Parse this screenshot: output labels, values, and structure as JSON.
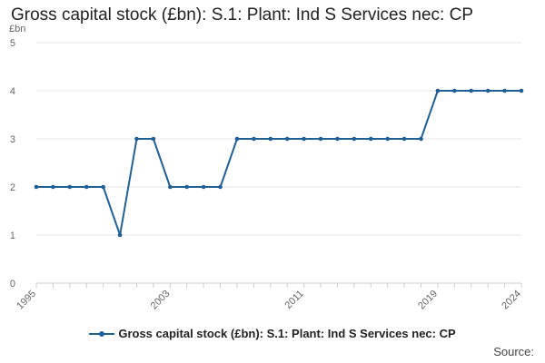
{
  "title": "Gross capital stock (£bn): S.1: Plant: Ind S Services nec: CP",
  "source_label": "Source:",
  "colors": {
    "series": "#206095",
    "grid": "#e6e6e6",
    "axis": "#cccccc",
    "text": "#666666"
  },
  "chart_data": {
    "type": "line",
    "title": "Gross capital stock (£bn): S.1: Plant: Ind S Services nec: CP",
    "ylabel": "£bn",
    "xlabel": "",
    "ylim": [
      0,
      5
    ],
    "yticks": [
      0,
      1,
      2,
      3,
      4,
      5
    ],
    "xlim": [
      1995,
      2024
    ],
    "xtick_labels": [
      "1995",
      "2003",
      "2011",
      "2019",
      "2024"
    ],
    "grid": true,
    "legend": "bottom",
    "x": [
      1995,
      1996,
      1997,
      1998,
      1999,
      2000,
      2001,
      2002,
      2003,
      2004,
      2005,
      2006,
      2007,
      2008,
      2009,
      2010,
      2011,
      2012,
      2013,
      2014,
      2015,
      2016,
      2017,
      2018,
      2019,
      2020,
      2021,
      2022,
      2023,
      2024
    ],
    "series": [
      {
        "name": "Gross capital stock (£bn): S.1: Plant: Ind S Services nec: CP",
        "values": [
          2,
          2,
          2,
          2,
          2,
          1,
          3,
          3,
          2,
          2,
          2,
          2,
          3,
          3,
          3,
          3,
          3,
          3,
          3,
          3,
          3,
          3,
          3,
          3,
          4,
          4,
          4,
          4,
          4,
          4
        ]
      }
    ]
  }
}
